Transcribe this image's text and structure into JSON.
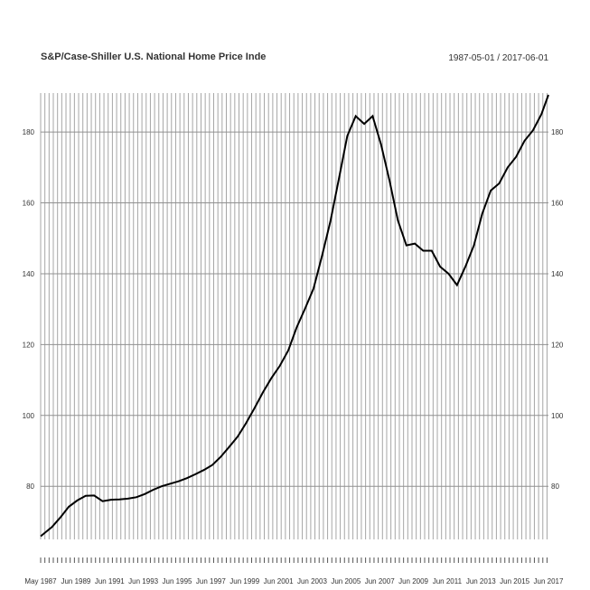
{
  "chart_data": {
    "type": "line",
    "title": "S&P/Case-Shiller U.S. National Home Price Inde",
    "date_range": "1987-05-01 / 2017-06-01",
    "ylim": [
      65,
      191
    ],
    "y_ticks": [
      80,
      100,
      120,
      140,
      160,
      180
    ],
    "x_tick_labels": [
      "May 1987",
      "Jun 1989",
      "Jun 1991",
      "Jun 1993",
      "Jun 1995",
      "Jun 1997",
      "Jun 1999",
      "Jun 2001",
      "Jun 2003",
      "Jun 2005",
      "Jun 2007",
      "Jun 2009",
      "Jun 2011",
      "Jun 2013",
      "Jun 2015",
      "Jun 2017"
    ],
    "grid": true,
    "axes": "left and right",
    "series": [
      {
        "x": [
          "1987-05",
          "1988-01",
          "1988-07",
          "1989-01",
          "1989-07",
          "1990-01",
          "1990-07",
          "1991-01",
          "1991-07",
          "1992-01",
          "1992-07",
          "1993-01",
          "1993-07",
          "1994-01",
          "1994-07",
          "1995-01",
          "1995-07",
          "1996-01",
          "1996-07",
          "1997-01",
          "1997-07",
          "1998-01",
          "1998-07",
          "1999-01",
          "1999-07",
          "2000-01",
          "2000-07",
          "2001-01",
          "2001-07",
          "2002-01",
          "2002-07",
          "2003-01",
          "2003-07",
          "2004-01",
          "2004-07",
          "2005-01",
          "2005-07",
          "2006-01",
          "2006-07",
          "2007-01",
          "2007-07",
          "2008-01",
          "2008-07",
          "2009-01",
          "2009-07",
          "2010-01",
          "2010-07",
          "2011-01",
          "2011-07",
          "2012-01",
          "2012-07",
          "2013-01",
          "2013-07",
          "2014-01",
          "2014-07",
          "2015-01",
          "2015-07",
          "2016-01",
          "2016-07",
          "2017-01",
          "2017-06"
        ],
        "y": [
          65.9,
          68.5,
          71.2,
          74.2,
          76.0,
          77.3,
          77.4,
          75.8,
          76.2,
          76.3,
          76.5,
          76.9,
          77.8,
          79.0,
          80.0,
          80.7,
          81.4,
          82.3,
          83.4,
          84.6,
          86.0,
          88.3,
          91.1,
          94.0,
          97.8,
          102.0,
          106.5,
          110.5,
          114.0,
          118.3,
          124.8,
          130.2,
          135.8,
          145.0,
          154.8,
          166.7,
          178.9,
          184.5,
          182.3,
          184.5,
          176.5,
          166.3,
          155.0,
          148.0,
          148.5,
          146.5,
          146.5,
          142.0,
          140.0,
          136.8,
          142.0,
          148.0,
          157.0,
          163.5,
          165.5,
          170.0,
          173.0,
          177.5,
          180.5,
          185.0,
          190.5
        ]
      }
    ]
  }
}
